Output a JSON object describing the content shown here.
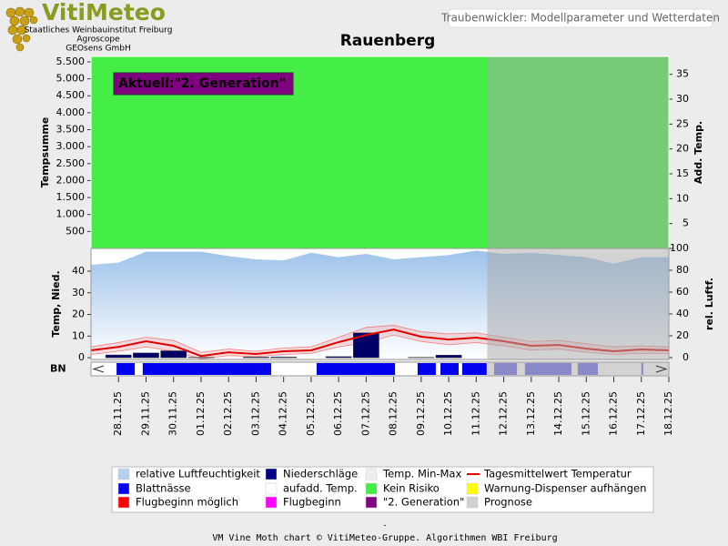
{
  "header": {
    "logo": "VitiMeteo",
    "org_lines": [
      "Staatliches Weinbauinstitut Freiburg",
      "Agroscope",
      "GEOsens GmbH"
    ],
    "page_title": "Traubenwickler: Modellparameter und Wetterdaten"
  },
  "title": "Rauenberg",
  "forecast": {
    "from": 14.4,
    "color": "#a8a8a8"
  },
  "chart_data": [
    {
      "type": "risk",
      "color": "#44ee44",
      "ylabel": "Tempsumme",
      "y2label": "Add. Temp.",
      "ylim": [
        0,
        5660
      ],
      "yticks": [
        500,
        {
          "value": 1000,
          "label": "1.000"
        },
        {
          "value": 1500,
          "label": "1.500"
        },
        {
          "value": 2000,
          "label": "2.000"
        },
        {
          "value": 2500,
          "label": "2.500"
        },
        {
          "value": 3000,
          "label": "3.000"
        },
        {
          "value": 3500,
          "label": "3.500"
        },
        {
          "value": 4000,
          "label": "4.000"
        },
        {
          "value": 4500,
          "label": "4.500"
        },
        {
          "value": 5000,
          "label": "5.000"
        },
        {
          "value": 5500,
          "label": "5.500"
        }
      ],
      "y2lim": [
        0,
        38.6
      ],
      "y2ticks": [
        5,
        10,
        15,
        20,
        25,
        30,
        35
      ],
      "annotation": {
        "text": "Aktuell:\"2. Generation\"",
        "color": "#800080"
      }
    },
    {
      "type": "line",
      "ylabel": "Temp, Nied.",
      "y2label": "rel. Luftf.",
      "xlim": [
        0,
        21
      ],
      "xticks": [
        {
          "value": 1,
          "label": "28.11.25"
        },
        {
          "value": 2,
          "label": "29.11.25"
        },
        {
          "value": 3,
          "label": "30.11.25"
        },
        {
          "value": 4,
          "label": "01.12.25"
        },
        {
          "value": 5,
          "label": "02.12.25"
        },
        {
          "value": 6,
          "label": "03.12.25"
        },
        {
          "value": 7,
          "label": "04.12.25"
        },
        {
          "value": 8,
          "label": "05.12.25"
        },
        {
          "value": 9,
          "label": "06.12.25"
        },
        {
          "value": 10,
          "label": "07.12.25"
        },
        {
          "value": 11,
          "label": "08.12.25"
        },
        {
          "value": 12,
          "label": "09.12.25"
        },
        {
          "value": 13,
          "label": "10.12.25"
        },
        {
          "value": 14,
          "label": "11.12.25"
        },
        {
          "value": 15,
          "label": "12.12.25"
        },
        {
          "value": 16,
          "label": "13.12.25"
        },
        {
          "value": 17,
          "label": "14.12.25"
        },
        {
          "value": 18,
          "label": "15.12.25"
        },
        {
          "value": 19,
          "label": "16.12.25"
        },
        {
          "value": 20,
          "label": "17.12.25"
        },
        {
          "value": 21,
          "label": "18.12.25"
        }
      ],
      "ylim": [
        -0.8,
        50.5
      ],
      "yticks": [
        0,
        10,
        20,
        30,
        40
      ],
      "y2lim": [
        -1.7,
        100
      ],
      "y2ticks": [
        0,
        20,
        40,
        60,
        80,
        100
      ],
      "x": [
        0,
        1,
        2,
        3,
        4,
        5,
        6,
        7,
        8,
        9,
        10,
        11,
        12,
        13,
        14,
        15,
        16,
        17,
        18,
        19,
        20,
        21
      ],
      "series": [
        {
          "type": "area",
          "axis": "y2",
          "color": "#9ec3ea",
          "values": [
            85,
            87,
            97,
            97,
            97,
            93,
            90,
            89,
            96,
            92,
            95,
            90,
            92,
            94,
            98,
            95,
            96,
            94,
            92,
            86,
            92,
            92
          ]
        },
        {
          "type": "band",
          "color": "#f08080",
          "low": [
            1.5,
            3,
            5,
            3,
            -0.5,
            1,
            0.5,
            1.5,
            2,
            5,
            7,
            10.5,
            7.5,
            6,
            7,
            5.5,
            3.5,
            4,
            2.5,
            1.5,
            2,
            2
          ],
          "high": [
            5,
            7,
            9.5,
            8,
            2.5,
            4,
            3,
            4.5,
            5,
            9.5,
            14,
            15,
            12,
            11,
            11.5,
            9.5,
            7.5,
            8,
            6.5,
            5,
            5.5,
            5
          ]
        },
        {
          "type": "bar",
          "color": "#000066",
          "values": [
            0,
            1.3,
            2.2,
            3.2,
            0.2,
            0,
            0.3,
            0.3,
            0,
            0.5,
            11.5,
            0,
            0.2,
            1.2,
            0,
            0,
            0,
            0,
            0,
            0,
            0,
            0
          ]
        },
        {
          "type": "line",
          "color": "#e00000",
          "values": [
            3.4,
            5,
            7.6,
            5.5,
            0.8,
            2.5,
            1.7,
            3,
            3.4,
            7.2,
            10.5,
            13,
            9.7,
            8.4,
            9.3,
            7.6,
            5.5,
            5.9,
            4.2,
            3,
            3.8,
            3.4
          ]
        }
      ]
    },
    {
      "type": "strip",
      "label": "BN",
      "series": [
        {
          "color": "#0000ee",
          "intervals": [
            [
              0.93,
              1.59
            ],
            [
              1.88,
              6.55
            ],
            [
              8.2,
              11.05
            ],
            [
              11.87,
              12.53
            ],
            [
              12.7,
              13.36
            ],
            [
              13.49,
              14.38
            ]
          ]
        },
        {
          "color": "#6a6ae6",
          "intervals": [
            [
              14.65,
              15.48
            ],
            [
              15.77,
              17.46
            ],
            [
              17.69,
              18.42
            ],
            [
              20.0,
              20.07
            ]
          ]
        }
      ]
    }
  ],
  "legend": [
    {
      "label": "relative Luftfeuchtigkeit",
      "color": "#b4d0ee",
      "style": "box"
    },
    {
      "label": "Niederschläge",
      "color": "#000080",
      "style": "box"
    },
    {
      "label": "Temp. Min-Max",
      "color": "#eeeeee",
      "style": "box"
    },
    {
      "label": "Tagesmittelwert Temperatur",
      "color": "#e00000",
      "style": "line"
    },
    {
      "label": "Blattnässe",
      "color": "#0000ff",
      "style": "box"
    },
    {
      "label": "aufadd. Temp.",
      "color": "#ffffff",
      "style": "box"
    },
    {
      "label": "Kein Risiko",
      "color": "#44ee44",
      "style": "box"
    },
    {
      "label": "Warnung-Dispenser aufhängen",
      "color": "#ffff00",
      "style": "box"
    },
    {
      "label": "Flugbeginn möglich",
      "color": "#ff0000",
      "style": "box"
    },
    {
      "label": "Flugbeginn",
      "color": "#ff00ff",
      "style": "box"
    },
    {
      "label": "\"2. Generation\"",
      "color": "#800080",
      "style": "box"
    },
    {
      "label": "Prognose",
      "color": "#d0d0d0",
      "style": "box"
    }
  ],
  "footer": {
    "dash": "-",
    "credit": "VM Vine Moth chart © VitiMeteo-Gruppe. Algorithmen WBI Freiburg"
  }
}
